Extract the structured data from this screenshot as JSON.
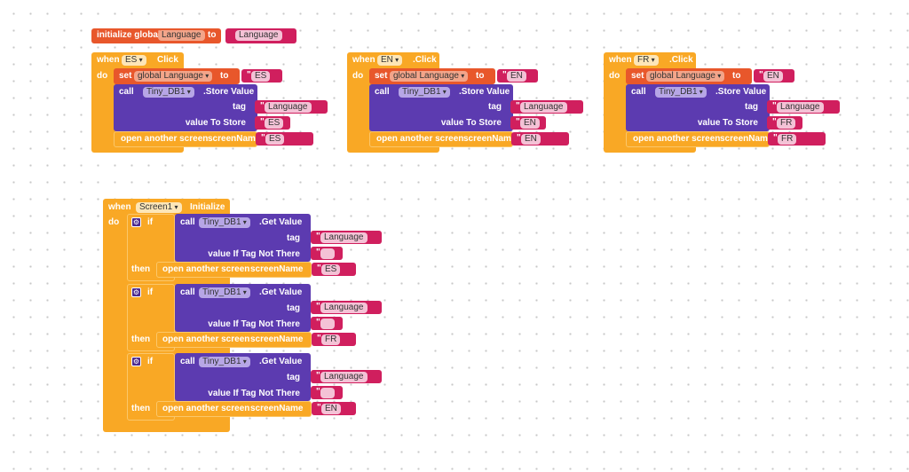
{
  "colors": {
    "event": "#f9a825",
    "setter": "#e8572b",
    "tinydb": "#5c3bb0",
    "text": "#d01f5e",
    "global_init": "#e8572b"
  },
  "init_global": {
    "label": "initialize global",
    "var": "Language",
    "to": "to",
    "value": "Language"
  },
  "click_handlers": [
    {
      "when": "when",
      "component": "ES",
      "event": "Click",
      "do": "do",
      "set": "set",
      "var": "global Language",
      "to": "to",
      "set_value": "ES",
      "call": "call",
      "db": "Tiny_DB1",
      "method": ".Store Value",
      "tag_label": "tag",
      "tag": "Language",
      "vts_label": "value To Store",
      "vts": "ES",
      "open": "open another screen",
      "screenName": "screenName",
      "screen": "ES"
    },
    {
      "when": "when",
      "component": "EN",
      "event": ".Click",
      "do": "do",
      "set": "set",
      "var": "global Language",
      "to": "to",
      "set_value": "EN",
      "call": "call",
      "db": "Tiny_DB1",
      "method": ".Store Value",
      "tag_label": "tag",
      "tag": "Language",
      "vts_label": "value To Store",
      "vts": "EN",
      "open": "open another screen",
      "screenName": "screenName",
      "screen": "EN"
    },
    {
      "when": "when",
      "component": "FR",
      "event": ".Click",
      "do": "do",
      "set": "set",
      "var": "global Language",
      "to": "to",
      "set_value": "EN",
      "call": "call",
      "db": "Tiny_DB1",
      "method": ".Store Value",
      "tag_label": "tag",
      "tag": "Language",
      "vts_label": "value To Store",
      "vts": "FR",
      "open": "open another screen",
      "screenName": "screenName",
      "screen": "FR"
    }
  ],
  "screen_init": {
    "when": "when",
    "component": "Screen1",
    "event": "Initialize",
    "do": "do",
    "ifs": [
      {
        "if": "if",
        "call": "call",
        "db": "Tiny_DB1",
        "method": ".Get Value",
        "tag_label": "tag",
        "tag": "Language",
        "default_label": "value If Tag Not There",
        "default": "",
        "then": "then",
        "open": "open another screen",
        "screenName": "screenName",
        "screen": "ES"
      },
      {
        "if": "if",
        "call": "call",
        "db": "Tiny_DB1",
        "method": ".Get Value",
        "tag_label": "tag",
        "tag": "Language",
        "default_label": "value If Tag Not There",
        "default": "",
        "then": "then",
        "open": "open another screen",
        "screenName": "screenName",
        "screen": "FR"
      },
      {
        "if": "if",
        "call": "call",
        "db": "Tiny_DB1",
        "method": ".Get Value",
        "tag_label": "tag",
        "tag": "Language",
        "default_label": "value If Tag Not There",
        "default": "",
        "then": "then",
        "open": "open another screen",
        "screenName": "screenName",
        "screen": "EN"
      }
    ]
  }
}
